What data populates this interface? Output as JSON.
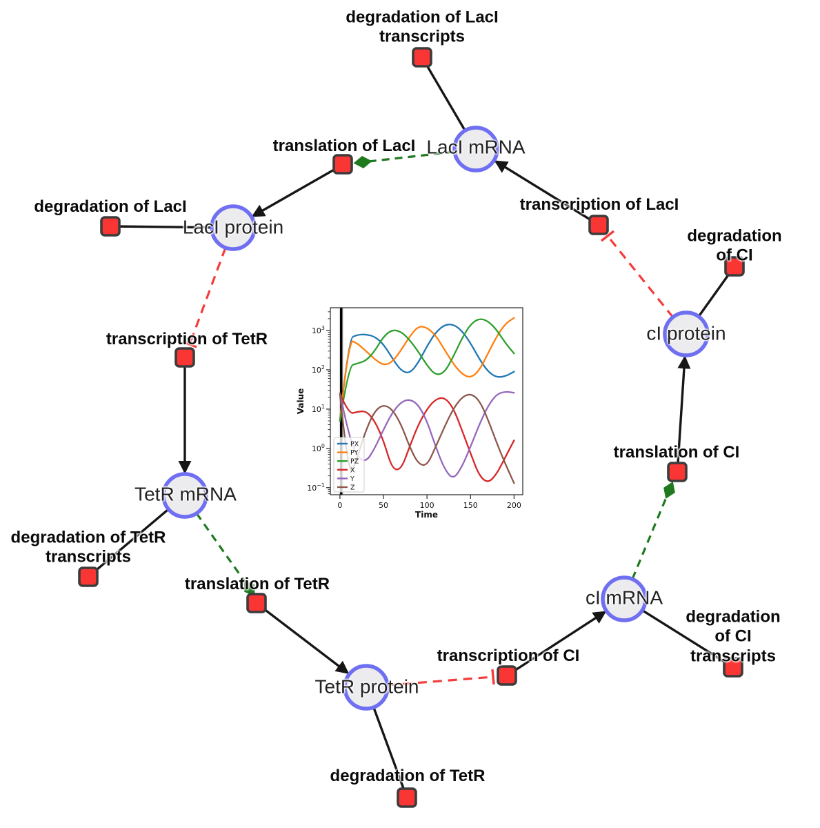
{
  "diagram": {
    "species": [
      {
        "label": "LacI mRNA"
      },
      {
        "label": "LacI protein"
      },
      {
        "label": "TetR mRNA"
      },
      {
        "label": "TetR protein"
      },
      {
        "label": "cI mRNA"
      },
      {
        "label": "cI protein"
      }
    ],
    "reactions": [
      {
        "label": "degradation of LacI\ntranscripts"
      },
      {
        "label": "translation of LacI"
      },
      {
        "label": "transcription of LacI"
      },
      {
        "label": "degradation of LacI"
      },
      {
        "label": "transcription of TetR"
      },
      {
        "label": "degradation of TetR\ntranscripts"
      },
      {
        "label": "translation of TetR"
      },
      {
        "label": "degradation of TetR"
      },
      {
        "label": "transcription of CI"
      },
      {
        "label": "degradation of CI\ntranscripts"
      },
      {
        "label": "translation of CI"
      },
      {
        "label": "degradation of CI"
      }
    ],
    "colors": {
      "species_fill": "#ececef",
      "species_border": "#6f6ff2",
      "reaction_fill": "#fa3634",
      "reaction_border": "#3c3c3c",
      "arc_reactant_product": "#161616",
      "arc_modifier": "#1f7a1f",
      "arc_inhibition": "#f43b3a"
    }
  },
  "chart_data": {
    "type": "line",
    "title": "",
    "xlabel": "Time",
    "ylabel": "Value",
    "x_ticks": [
      0,
      50,
      100,
      150,
      200
    ],
    "y_scale": "log",
    "y_tick_exponents": [
      -1,
      0,
      1,
      2,
      3
    ],
    "xlim": [
      -11,
      210
    ],
    "ylim_log10": [
      -1.18,
      3.58
    ],
    "grid": false,
    "legend_position": "lower left",
    "initial_transient_line_x": 1.5,
    "x": [
      0,
      10,
      20,
      30,
      40,
      50,
      60,
      70,
      80,
      90,
      100,
      110,
      120,
      130,
      140,
      150,
      160,
      170,
      180,
      190,
      200
    ],
    "series": [
      {
        "name": "PX",
        "color": "#1f77b4",
        "values": [
          5,
          620,
          780,
          800,
          700,
          450,
          200,
          95,
          80,
          150,
          400,
          900,
          1400,
          1450,
          1000,
          480,
          190,
          90,
          64,
          68,
          90
        ]
      },
      {
        "name": "PY",
        "color": "#ff7f0e",
        "values": [
          5,
          600,
          470,
          300,
          185,
          130,
          155,
          310,
          700,
          1300,
          1200,
          750,
          330,
          145,
          78,
          62,
          95,
          260,
          700,
          1500,
          2100
        ]
      },
      {
        "name": "PZ",
        "color": "#2ca02c",
        "values": [
          5,
          125,
          145,
          170,
          300,
          700,
          1050,
          950,
          580,
          290,
          130,
          72,
          85,
          210,
          620,
          1450,
          2050,
          1750,
          1050,
          480,
          260
        ]
      },
      {
        "name": "X",
        "color": "#d62728",
        "values": [
          25,
          7.5,
          8.5,
          9,
          5,
          1.6,
          0.3,
          0.28,
          1.1,
          4,
          10,
          18,
          20,
          11,
          3,
          0.75,
          0.2,
          0.13,
          0.22,
          0.6,
          1.6
        ]
      },
      {
        "name": "Y",
        "color": "#9467bd",
        "values": [
          25,
          2.2,
          0.6,
          0.45,
          1,
          3,
          8,
          15,
          18,
          13,
          5,
          1.1,
          0.3,
          0.16,
          0.33,
          1.1,
          4,
          12,
          24,
          28,
          26
        ]
      },
      {
        "name": "Z",
        "color": "#8c564b",
        "values": [
          25,
          0.15,
          0.6,
          3,
          9,
          13,
          10,
          4.2,
          1.1,
          0.4,
          0.36,
          1.1,
          3.5,
          10,
          20,
          25,
          17,
          5.5,
          1.4,
          0.4,
          0.13
        ]
      }
    ]
  }
}
